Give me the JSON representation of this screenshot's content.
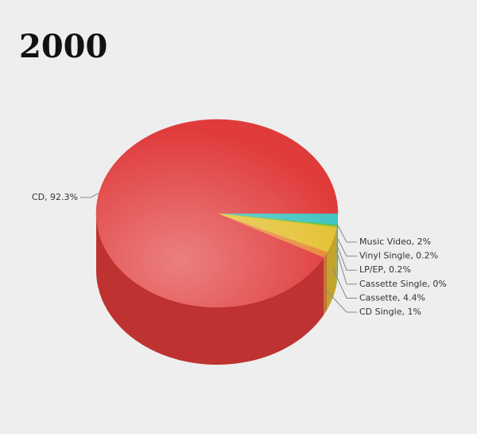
{
  "chart_data": {
    "type": "pie",
    "title": "2000",
    "categories": [
      "Music Video",
      "Vinyl Single",
      "LP/EP",
      "Cassette Single",
      "Cassette",
      "CD Single",
      "CD"
    ],
    "values": [
      2,
      0.2,
      0.2,
      0,
      4.4,
      1,
      92.3
    ],
    "value_labels": [
      "Music Video, 2%",
      "Vinyl Single, 0.2%",
      "LP/EP, 0.2%",
      "Cassette Single, 0%",
      "Cassette, 4.4%",
      "CD Single, 1%",
      "CD, 92.3%"
    ],
    "colors": [
      "#3fc4c2",
      "#5cbd3d",
      "#9cc83a",
      "#c9a227",
      "#e4c132",
      "#e8893a",
      "#e03b3b"
    ]
  }
}
